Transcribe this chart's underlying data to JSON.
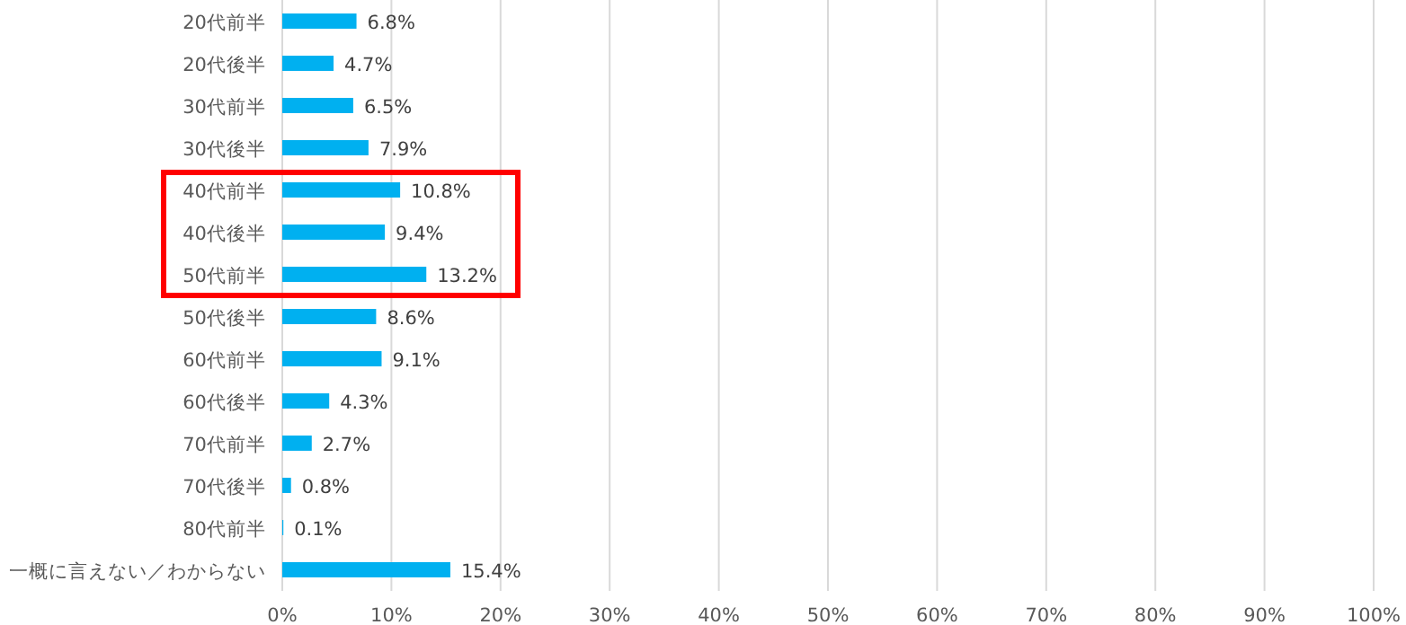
{
  "chart_data": {
    "type": "bar",
    "orientation": "horizontal",
    "categories": [
      "20代前半",
      "20代後半",
      "30代前半",
      "30代後半",
      "40代前半",
      "40代後半",
      "50代前半",
      "50代後半",
      "60代前半",
      "60代後半",
      "70代前半",
      "70代後半",
      "80代前半",
      "一概に言えない／わからない"
    ],
    "values": [
      6.8,
      4.7,
      6.5,
      7.9,
      10.8,
      9.4,
      13.2,
      8.6,
      9.1,
      4.3,
      2.7,
      0.8,
      0.1,
      15.4
    ],
    "value_labels": [
      "6.8%",
      "4.7%",
      "6.5%",
      "7.9%",
      "10.8%",
      "9.4%",
      "13.2%",
      "8.6%",
      "9.1%",
      "4.3%",
      "2.7%",
      "0.8%",
      "0.1%",
      "15.4%"
    ],
    "color": "#00b0f0",
    "xlim": [
      0,
      100
    ],
    "xticks": [
      {
        "value": 0,
        "label": "0%"
      },
      {
        "value": 10,
        "label": "10%"
      },
      {
        "value": 20,
        "label": "20%"
      },
      {
        "value": 30,
        "label": "30%"
      },
      {
        "value": 40,
        "label": "40%"
      },
      {
        "value": 50,
        "label": "50%"
      },
      {
        "value": 60,
        "label": "60%"
      },
      {
        "value": 70,
        "label": "70%"
      },
      {
        "value": 80,
        "label": "80%"
      },
      {
        "value": 90,
        "label": "90%"
      },
      {
        "value": 100,
        "label": "100%"
      }
    ],
    "grid": "x"
  }
}
